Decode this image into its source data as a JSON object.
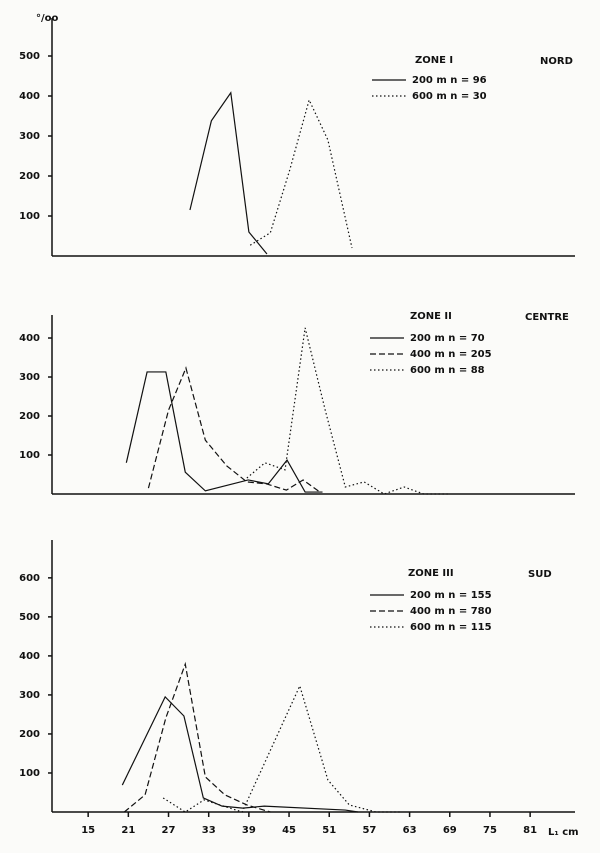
{
  "chart_data": [
    {
      "type": "line",
      "title": "ZONE I",
      "subtitle": "NORD",
      "y_label": "°/oo",
      "xlim": [
        9.6,
        87.7
      ],
      "ylim": [
        0,
        595
      ],
      "yticks": [
        100,
        200,
        300,
        400,
        500
      ],
      "series": [
        {
          "name": "200 m   n = 96",
          "color": "#111111",
          "style": "solid",
          "x": [
            30.2,
            33.4,
            36.3,
            39,
            41.7
          ],
          "values": [
            115,
            338,
            408,
            60,
            5
          ]
        },
        {
          "name": "600 m   n = 30",
          "color": "#111111",
          "style": "dotted",
          "x": [
            39.2,
            42.2,
            45.1,
            48,
            50.8,
            54.4
          ],
          "values": [
            27,
            58,
            215,
            390,
            290,
            20
          ]
        }
      ]
    },
    {
      "type": "line",
      "title": "ZONE II",
      "subtitle": "CENTRE",
      "xlim": [
        9.6,
        87.7
      ],
      "ylim": [
        0,
        459
      ],
      "yticks": [
        100,
        200,
        300,
        400
      ],
      "series": [
        {
          "name": "200 m   n = 70",
          "color": "#111111",
          "style": "solid",
          "x": [
            20.7,
            23.8,
            26.6,
            29.5,
            32.5,
            38.9,
            41.9,
            44.7,
            47.4,
            50
          ],
          "values": [
            80,
            313,
            313,
            56,
            8,
            36,
            26,
            87,
            5,
            5
          ]
        },
        {
          "name": "400 m   n = 205",
          "color": "#111111",
          "style": "dashed",
          "x": [
            24,
            27,
            29.6,
            32.5,
            35.7,
            38.7,
            41.6,
            44.6,
            47.1,
            49.6
          ],
          "values": [
            15,
            215,
            323,
            138,
            72,
            31,
            26,
            10,
            36,
            5
          ]
        },
        {
          "name": "600 m   n = 88",
          "color": "#111111",
          "style": "dotted",
          "x": [
            38.7,
            41.4,
            44.4,
            47.4,
            50.4,
            53.4,
            56.2,
            59.2,
            62.2,
            65.1,
            68.7
          ],
          "values": [
            41,
            80,
            62,
            426,
            215,
            18,
            31,
            0,
            18,
            0,
            0
          ]
        }
      ]
    },
    {
      "type": "line",
      "title": "ZONE III",
      "subtitle": "SUD",
      "x_label": "L₁ cm",
      "xlim": [
        9.6,
        87.7
      ],
      "xticks": [
        15,
        21,
        27,
        33,
        39,
        45,
        51,
        57,
        63,
        69,
        75,
        81
      ],
      "ylim": [
        0,
        697
      ],
      "yticks": [
        100,
        200,
        300,
        400,
        500,
        600
      ],
      "series": [
        {
          "name": "200 m   n = 155",
          "color": "#111111",
          "style": "solid",
          "x": [
            20.1,
            26.5,
            29.3,
            32.2,
            35,
            38.1,
            41.3,
            53.4,
            55.3
          ],
          "values": [
            69,
            295,
            246,
            36,
            15,
            10,
            15,
            5,
            0
          ]
        },
        {
          "name": "400 m   n = 780",
          "color": "#111111",
          "style": "dashed",
          "x": [
            20.4,
            23.5,
            26.6,
            29.5,
            32.5,
            35.4,
            38.7,
            42.2
          ],
          "values": [
            0,
            44,
            241,
            379,
            90,
            44,
            18,
            0
          ]
        },
        {
          "name": "600 m   n = 115",
          "color": "#111111",
          "style": "dotted",
          "x": [
            26.2,
            29.5,
            32.3,
            38,
            46.6,
            50.8,
            54,
            58,
            61.6
          ],
          "values": [
            36,
            0,
            31,
            0,
            323,
            82,
            18,
            0,
            0
          ]
        }
      ]
    }
  ]
}
